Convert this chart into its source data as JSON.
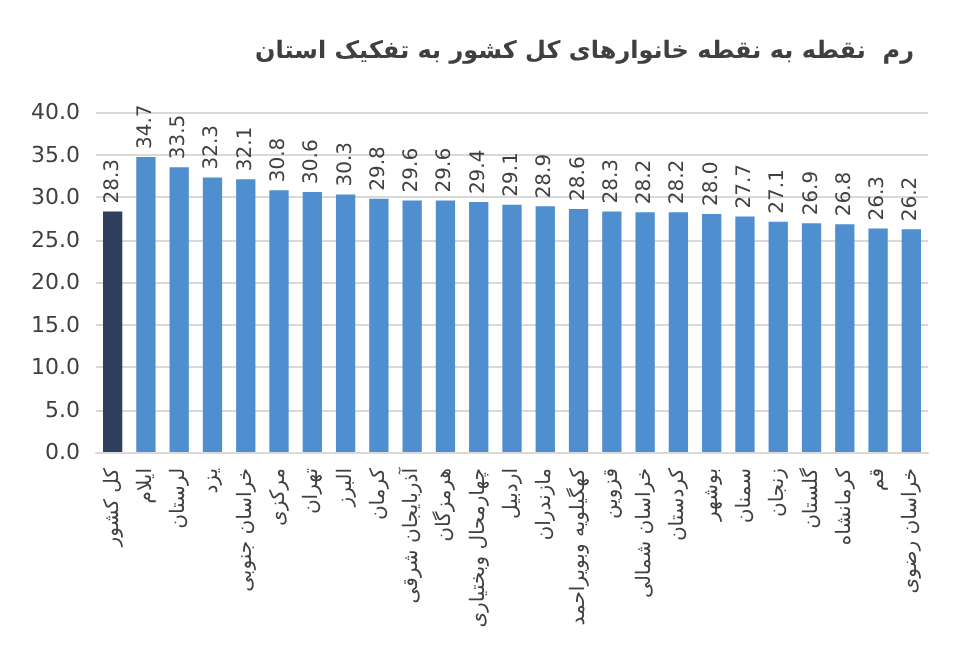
{
  "chart_data": {
    "type": "bar",
    "title": "رم  نقطه به نقطه خانوارهای کل کشور به تفکیک استان",
    "categories": [
      "کل کشور",
      "ایلام",
      "لرستان",
      "یزد",
      "خراسان جنوبی",
      "مرکزی",
      "تهران",
      "البرز",
      "کرمان",
      "آذربایجان شرقی",
      "هرمزگان",
      "چهارمحال وبختیاری",
      "اردبیل",
      "مازندران",
      "کهگیلویه وبویراحمد",
      "قزوین",
      "خراسان شمالی",
      "کردستان",
      "بوشهر",
      "سمنان",
      "زنجان",
      "گلستان",
      "کرمانشاه",
      "قم",
      "خراسان رضوی"
    ],
    "values": [
      28.3,
      34.7,
      33.5,
      32.3,
      32.1,
      30.8,
      30.6,
      30.3,
      29.8,
      29.6,
      29.6,
      29.4,
      29.1,
      28.9,
      28.6,
      28.3,
      28.2,
      28.2,
      28.0,
      27.7,
      27.1,
      26.9,
      26.8,
      26.3,
      26.2
    ],
    "value_labels": [
      "28.3",
      "34.7",
      "33.5",
      "32.3",
      "32.1",
      "30.8",
      "30.6",
      "30.3",
      "29.8",
      "29.6",
      "29.6",
      "29.4",
      "29.1",
      "28.9",
      "28.6",
      "28.3",
      "28.2",
      "28.2",
      "28.0",
      "27.7",
      "27.1",
      "26.9",
      "26.8",
      "26.3",
      "26.2"
    ],
    "colors": [
      "#2f3f5e",
      "#4f8fd0",
      "#4f8fd0",
      "#4f8fd0",
      "#4f8fd0",
      "#4f8fd0",
      "#4f8fd0",
      "#4f8fd0",
      "#4f8fd0",
      "#4f8fd0",
      "#4f8fd0",
      "#4f8fd0",
      "#4f8fd0",
      "#4f8fd0",
      "#4f8fd0",
      "#4f8fd0",
      "#4f8fd0",
      "#4f8fd0",
      "#4f8fd0",
      "#4f8fd0",
      "#4f8fd0",
      "#4f8fd0",
      "#4f8fd0",
      "#4f8fd0",
      "#4f8fd0"
    ],
    "ylim": [
      0,
      40
    ],
    "yticks": [
      {
        "value": 0,
        "label": "0.0"
      },
      {
        "value": 5,
        "label": "5.0"
      },
      {
        "value": 10,
        "label": "10.0"
      },
      {
        "value": 15,
        "label": "15.0"
      },
      {
        "value": 20,
        "label": "20.0"
      },
      {
        "value": 25,
        "label": "25.0"
      },
      {
        "value": 30,
        "label": "30.0"
      },
      {
        "value": 35,
        "label": "35.0"
      },
      {
        "value": 40,
        "label": "40.0"
      }
    ],
    "grid": "y"
  }
}
